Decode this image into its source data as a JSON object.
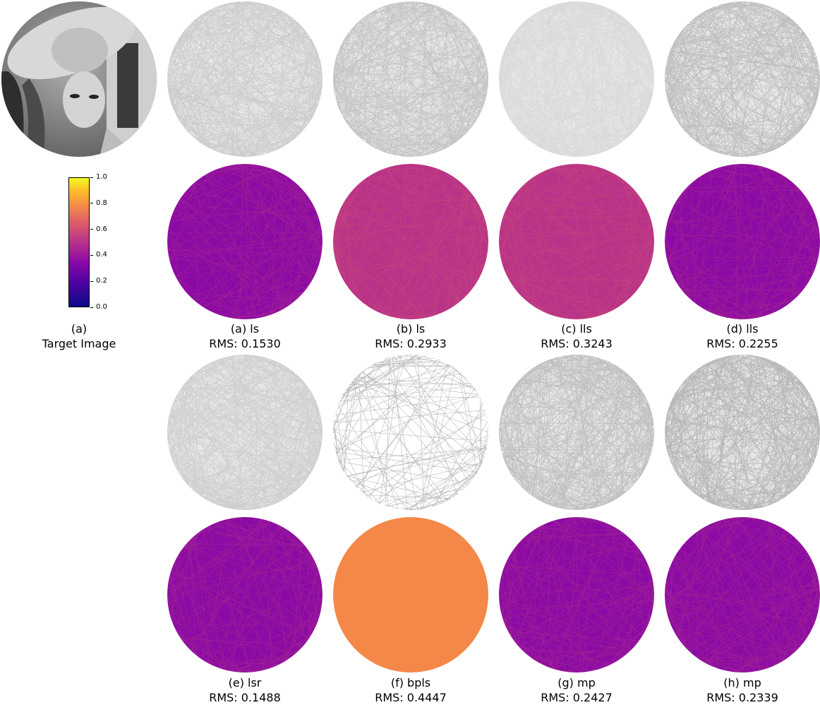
{
  "target_caption": {
    "line1": "(a)",
    "line2": "Target Image"
  },
  "colorbar": {
    "colormap": "plasma",
    "range": [
      0.0,
      1.0
    ],
    "ticks": [
      "0.0",
      "0.2",
      "0.4",
      "0.6",
      "0.8",
      "1.0"
    ]
  },
  "panels": [
    {
      "label": "(a) ls",
      "rms_text": "RMS: 0.1530",
      "rms": 0.153
    },
    {
      "label": "(b) ls",
      "rms_text": "RMS: 0.2933",
      "rms": 0.2933
    },
    {
      "label": "(c) lls",
      "rms_text": "RMS: 0.3243",
      "rms": 0.3243
    },
    {
      "label": "(d) lls",
      "rms_text": "RMS: 0.2255",
      "rms": 0.2255
    },
    {
      "label": "(e) lsr",
      "rms_text": "RMS: 0.1488",
      "rms": 0.1488
    },
    {
      "label": "(f) bpls",
      "rms_text": "RMS: 0.4447",
      "rms": 0.4447
    },
    {
      "label": "(g) mp",
      "rms_text": "RMS: 0.2427",
      "rms": 0.2427
    },
    {
      "label": "(h) mp",
      "rms_text": "RMS: 0.2339",
      "rms": 0.2339
    }
  ]
}
